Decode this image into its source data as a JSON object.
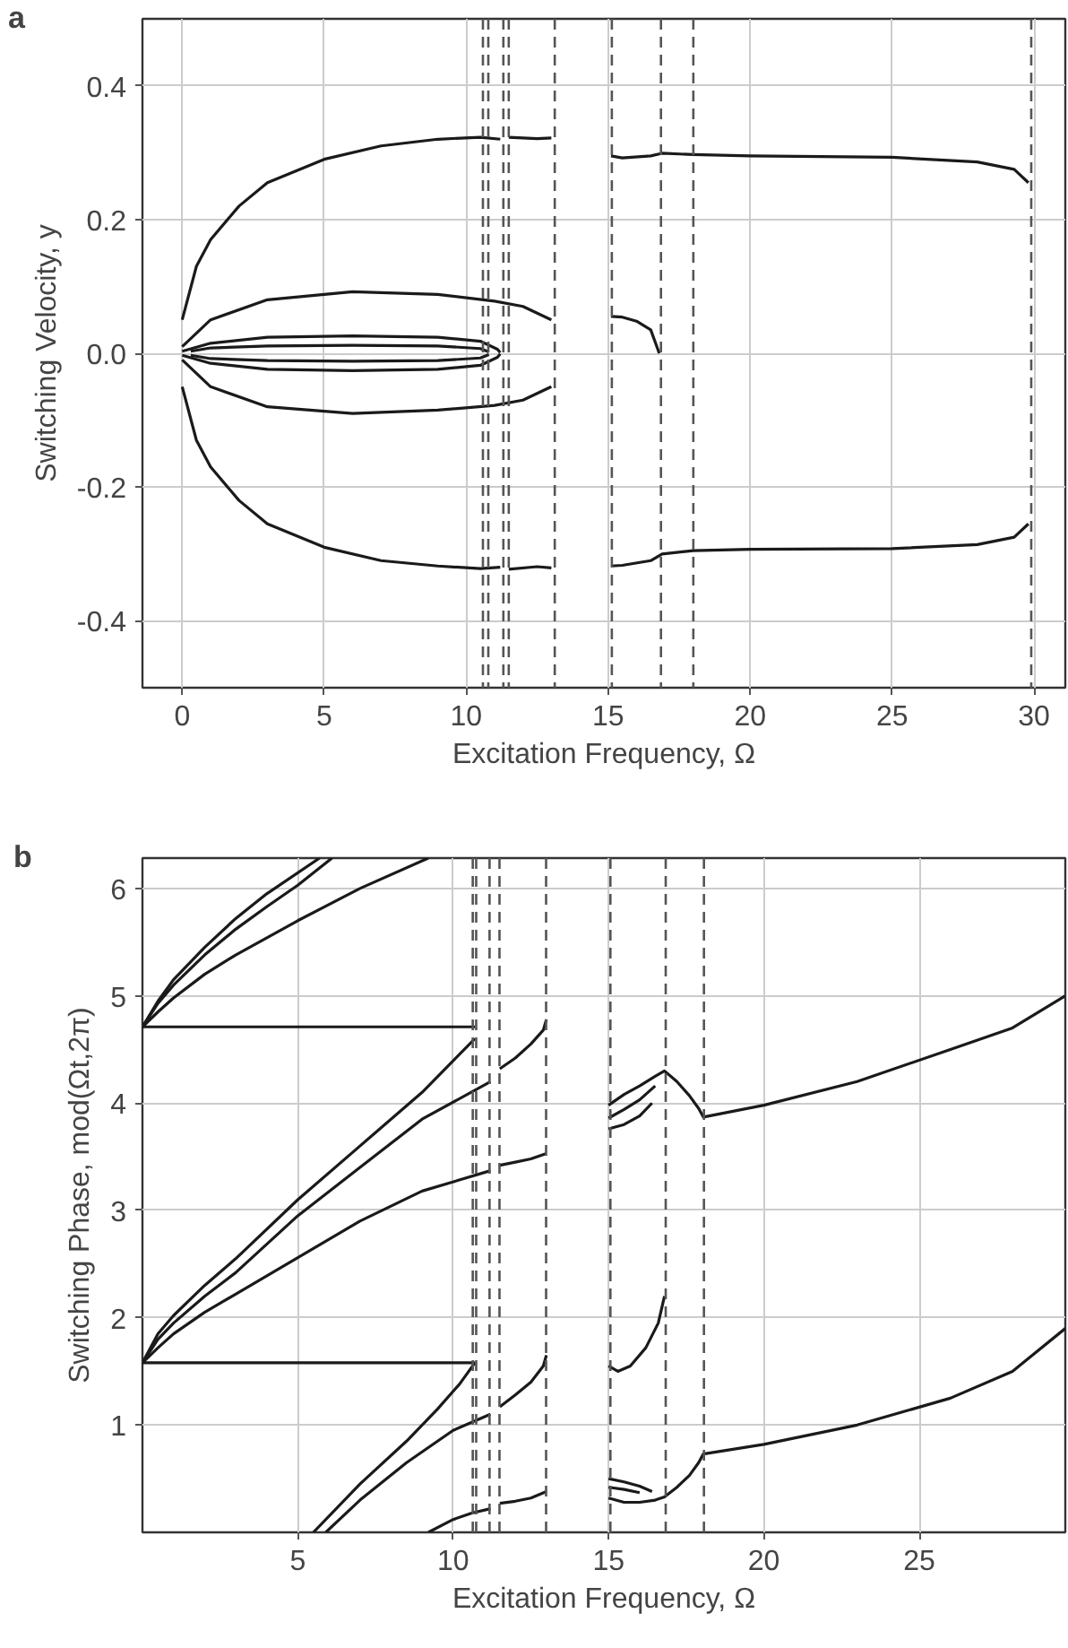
{
  "chart_data": [
    {
      "type": "line",
      "title": "a",
      "xlabel": "Excitation Frequency, Ω",
      "ylabel": "Switching Velocity, y",
      "xlim": [
        -1.4,
        31.1
      ],
      "ylim": [
        -0.5,
        0.5
      ],
      "xticks": [
        0,
        5,
        10,
        15,
        20,
        25,
        30
      ],
      "yticks": [
        {
          "value": -0.4,
          "label": "-0.4"
        },
        {
          "value": -0.2,
          "label": "-0.2"
        },
        {
          "value": 0,
          "label": "0.0"
        },
        {
          "value": 0.2,
          "label": "0.2"
        },
        {
          "value": 0.4,
          "label": "0.4"
        }
      ],
      "grid": true,
      "line_style": "solid",
      "series": [
        {
          "color": "#1a1a1a",
          "x": [
            0,
            0.5,
            1,
            2,
            3,
            5,
            7,
            9,
            10.5,
            11.2
          ],
          "values": [
            0.05,
            0.13,
            0.17,
            0.22,
            0.255,
            0.29,
            0.31,
            0.32,
            0.323,
            0.32
          ]
        },
        {
          "color": "#1a1a1a",
          "x": [
            11.5,
            12.5,
            13
          ],
          "values": [
            0.323,
            0.321,
            0.322
          ]
        },
        {
          "color": "#1a1a1a",
          "x": [
            15.1,
            15.5,
            16.5,
            16.9,
            18,
            20,
            25,
            28,
            29.3,
            29.8
          ],
          "values": [
            0.295,
            0.292,
            0.295,
            0.299,
            0.297,
            0.295,
            0.293,
            0.286,
            0.275,
            0.255
          ]
        },
        {
          "color": "#1a1a1a",
          "x": [
            0,
            0.5,
            1,
            2,
            3,
            5,
            7,
            9,
            10.5,
            11.2
          ],
          "values": [
            -0.05,
            -0.13,
            -0.17,
            -0.22,
            -0.255,
            -0.29,
            -0.31,
            -0.318,
            -0.322,
            -0.32
          ]
        },
        {
          "color": "#1a1a1a",
          "x": [
            11.5,
            12.5,
            13
          ],
          "values": [
            -0.323,
            -0.319,
            -0.321
          ]
        },
        {
          "color": "#1a1a1a",
          "x": [
            15.1,
            15.5,
            16.5,
            16.9,
            18,
            20,
            25,
            28,
            29.3,
            29.8
          ],
          "values": [
            -0.318,
            -0.317,
            -0.31,
            -0.3,
            -0.295,
            -0.293,
            -0.292,
            -0.286,
            -0.275,
            -0.255
          ]
        },
        {
          "color": "#1a1a1a",
          "x": [
            0,
            1,
            3,
            6,
            9,
            11,
            12,
            13
          ],
          "values": [
            0.01,
            0.05,
            0.08,
            0.092,
            0.088,
            0.078,
            0.07,
            0.05
          ]
        },
        {
          "color": "#1a1a1a",
          "x": [
            0,
            1,
            3,
            6,
            9,
            11,
            12,
            13
          ],
          "values": [
            -0.01,
            -0.05,
            -0.08,
            -0.09,
            -0.085,
            -0.078,
            -0.07,
            -0.05
          ]
        },
        {
          "color": "#1a1a1a",
          "x": [
            15.1,
            15.5,
            16,
            16.5,
            16.8
          ],
          "values": [
            0.055,
            0.054,
            0.048,
            0.035,
            0.0
          ]
        },
        {
          "color": "#1a1a1a",
          "x": [
            0,
            1,
            3,
            6,
            9,
            10.5,
            11.1,
            11.2
          ],
          "values": [
            0.003,
            0.015,
            0.024,
            0.026,
            0.024,
            0.018,
            0.006,
            0.001
          ]
        },
        {
          "color": "#1a1a1a",
          "x": [
            0,
            1,
            3,
            6,
            9,
            10.5,
            11.1,
            11.2
          ],
          "values": [
            -0.003,
            -0.015,
            -0.024,
            -0.026,
            -0.024,
            -0.018,
            -0.006,
            -0.001
          ]
        },
        {
          "color": "#1a1a1a",
          "x": [
            0.3,
            1,
            3,
            6,
            9,
            10.5,
            10.8
          ],
          "values": [
            0.003,
            0.008,
            0.011,
            0.012,
            0.011,
            0.007,
            0.002
          ]
        },
        {
          "color": "#1a1a1a",
          "x": [
            0.3,
            1,
            3,
            6,
            9,
            10.5,
            10.8
          ],
          "values": [
            -0.003,
            -0.008,
            -0.011,
            -0.012,
            -0.011,
            -0.007,
            -0.002
          ]
        }
      ],
      "ref_lines": [
        {
          "axis": "x",
          "value": 10.59,
          "color": "#555555",
          "line_style": "dashed"
        },
        {
          "axis": "x",
          "value": 10.78,
          "color": "#555555",
          "line_style": "dashed"
        },
        {
          "axis": "x",
          "value": 11.31,
          "color": "#555555",
          "line_style": "dashed"
        },
        {
          "axis": "x",
          "value": 11.5,
          "color": "#555555",
          "line_style": "dashed"
        },
        {
          "axis": "x",
          "value": 13.12,
          "color": "#555555",
          "line_style": "dashed"
        },
        {
          "axis": "x",
          "value": 15.13,
          "color": "#555555",
          "line_style": "dashed"
        },
        {
          "axis": "x",
          "value": 16.86,
          "color": "#555555",
          "line_style": "dashed"
        },
        {
          "axis": "x",
          "value": 18.0,
          "color": "#555555",
          "line_style": "dashed"
        },
        {
          "axis": "x",
          "value": 29.9,
          "color": "#555555",
          "line_style": "dashed"
        }
      ]
    },
    {
      "type": "line",
      "title": "b",
      "xlabel": "Excitation Frequency, Ω",
      "ylabel": "Switching Phase, mod(Ωt,2π)",
      "xlim": [
        0,
        29.7
      ],
      "ylim": [
        0,
        6.283
      ],
      "xticks": [
        5,
        10,
        15,
        20,
        25
      ],
      "yticks": [
        1,
        2,
        3,
        4,
        5,
        6
      ],
      "grid": true,
      "line_style": "solid",
      "series": [
        {
          "color": "#1a1a1a",
          "x": [
            0,
            10.7
          ],
          "values": [
            4.71,
            4.71
          ]
        },
        {
          "color": "#1a1a1a",
          "x": [
            0,
            10.7
          ],
          "values": [
            1.58,
            1.58
          ]
        },
        {
          "color": "#1a1a1a",
          "x": [
            0,
            0.5,
            1,
            2,
            3,
            4,
            5.7
          ],
          "values": [
            4.71,
            4.95,
            5.15,
            5.45,
            5.72,
            5.95,
            6.283
          ]
        },
        {
          "color": "#1a1a1a",
          "x": [
            0,
            0.5,
            1,
            2,
            3,
            4,
            5,
            6.1
          ],
          "values": [
            4.71,
            4.93,
            5.1,
            5.38,
            5.62,
            5.83,
            6.03,
            6.283
          ]
        },
        {
          "color": "#1a1a1a",
          "x": [
            0,
            0.5,
            1,
            2,
            3,
            5,
            7,
            9.2
          ],
          "values": [
            4.71,
            4.85,
            4.98,
            5.2,
            5.38,
            5.7,
            6.0,
            6.283
          ]
        },
        {
          "color": "#1a1a1a",
          "x": [
            5.5,
            7,
            8.5,
            9.5,
            10.2,
            10.7
          ],
          "values": [
            0,
            0.45,
            0.85,
            1.15,
            1.38,
            1.58
          ]
        },
        {
          "color": "#1a1a1a",
          "x": [
            5.9,
            7,
            8.5,
            10,
            11.2
          ],
          "values": [
            0,
            0.3,
            0.65,
            0.95,
            1.1
          ]
        },
        {
          "color": "#1a1a1a",
          "x": [
            9.2,
            10,
            10.6,
            11.2
          ],
          "values": [
            0,
            0.12,
            0.18,
            0.22
          ]
        },
        {
          "color": "#1a1a1a",
          "x": [
            0,
            0.5,
            1,
            2,
            3,
            5,
            7,
            9,
            10.7
          ],
          "values": [
            1.58,
            1.85,
            2.02,
            2.3,
            2.55,
            3.1,
            3.6,
            4.1,
            4.6
          ]
        },
        {
          "color": "#1a1a1a",
          "x": [
            0,
            0.5,
            1,
            2,
            3,
            5,
            7,
            9,
            11.2
          ],
          "values": [
            1.58,
            1.8,
            1.95,
            2.2,
            2.42,
            2.95,
            3.4,
            3.85,
            4.2
          ]
        },
        {
          "color": "#1a1a1a",
          "x": [
            0,
            0.5,
            1,
            2,
            3,
            5,
            7,
            9,
            11.2
          ],
          "values": [
            1.58,
            1.72,
            1.85,
            2.05,
            2.22,
            2.56,
            2.9,
            3.18,
            3.37
          ]
        },
        {
          "color": "#1a1a1a",
          "x": [
            11.5,
            12,
            12.5,
            12.9,
            13
          ],
          "values": [
            4.32,
            4.42,
            4.55,
            4.68,
            4.78
          ]
        },
        {
          "color": "#1a1a1a",
          "x": [
            11.5,
            12,
            12.5,
            13
          ],
          "values": [
            3.42,
            3.45,
            3.48,
            3.53
          ]
        },
        {
          "color": "#1a1a1a",
          "x": [
            11.5,
            12,
            12.5,
            12.9,
            13
          ],
          "values": [
            1.17,
            1.28,
            1.4,
            1.55,
            1.65
          ]
        },
        {
          "color": "#1a1a1a",
          "x": [
            11.5,
            12,
            12.5,
            13
          ],
          "values": [
            0.27,
            0.29,
            0.32,
            0.38
          ]
        },
        {
          "color": "#1a1a1a",
          "x": [
            15,
            15.5,
            16,
            16.5,
            16.8,
            17.2,
            17.6,
            17.9,
            18.05,
            20,
            23,
            26,
            28,
            29.7
          ],
          "values": [
            3.98,
            4.08,
            4.16,
            4.25,
            4.3,
            4.2,
            4.07,
            3.95,
            3.87,
            3.98,
            4.2,
            4.5,
            4.7,
            5.0
          ]
        },
        {
          "color": "#1a1a1a",
          "x": [
            15,
            15.5,
            16,
            16.5
          ],
          "values": [
            3.86,
            3.94,
            4.03,
            4.16
          ]
        },
        {
          "color": "#1a1a1a",
          "x": [
            15,
            15.5,
            16,
            16.4
          ],
          "values": [
            3.76,
            3.8,
            3.88,
            4.0
          ]
        },
        {
          "color": "#1a1a1a",
          "x": [
            15,
            15.3,
            15.7,
            16.2,
            16.6,
            16.8
          ],
          "values": [
            1.55,
            1.5,
            1.55,
            1.72,
            1.95,
            2.2
          ]
        },
        {
          "color": "#1a1a1a",
          "x": [
            15,
            15.5,
            16,
            16.5,
            16.8,
            17.2,
            17.6,
            17.9,
            18.05,
            20,
            23,
            26,
            28,
            29.7
          ],
          "values": [
            0.32,
            0.28,
            0.28,
            0.3,
            0.33,
            0.42,
            0.53,
            0.65,
            0.73,
            0.82,
            1.0,
            1.25,
            1.5,
            1.9
          ]
        },
        {
          "color": "#1a1a1a",
          "x": [
            15,
            15.5,
            16,
            16.4
          ],
          "values": [
            0.5,
            0.47,
            0.43,
            0.38
          ]
        },
        {
          "color": "#1a1a1a",
          "x": [
            15,
            15.5,
            16
          ],
          "values": [
            0.42,
            0.4,
            0.37
          ]
        }
      ],
      "ref_lines": [
        {
          "axis": "x",
          "value": 10.63,
          "color": "#555555",
          "line_style": "dashed"
        },
        {
          "axis": "x",
          "value": 10.74,
          "color": "#555555",
          "line_style": "dashed"
        },
        {
          "axis": "x",
          "value": 11.17,
          "color": "#555555",
          "line_style": "dashed"
        },
        {
          "axis": "x",
          "value": 11.49,
          "color": "#555555",
          "line_style": "dashed"
        },
        {
          "axis": "x",
          "value": 12.99,
          "color": "#555555",
          "line_style": "dashed"
        },
        {
          "axis": "x",
          "value": 15.06,
          "color": "#555555",
          "line_style": "dashed"
        },
        {
          "axis": "x",
          "value": 16.84,
          "color": "#555555",
          "line_style": "dashed"
        },
        {
          "axis": "x",
          "value": 18.07,
          "color": "#555555",
          "line_style": "dashed"
        }
      ]
    }
  ]
}
